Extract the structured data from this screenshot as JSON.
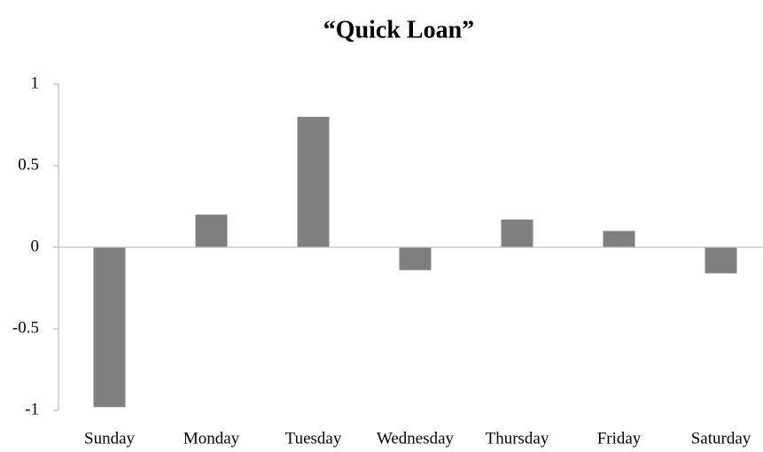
{
  "chart_data": {
    "type": "bar",
    "title": "“Quick Loan”",
    "categories": [
      "Sunday",
      "Monday",
      "Tuesday",
      "Wednesday",
      "Thursday",
      "Friday",
      "Saturday"
    ],
    "values": [
      -0.98,
      0.2,
      0.8,
      -0.14,
      0.17,
      0.1,
      -0.16
    ],
    "color": "#7f7f7f",
    "ylim": [
      -1,
      1
    ],
    "yticks": [
      -1,
      -0.5,
      0,
      0.5,
      1
    ],
    "grid": false
  }
}
